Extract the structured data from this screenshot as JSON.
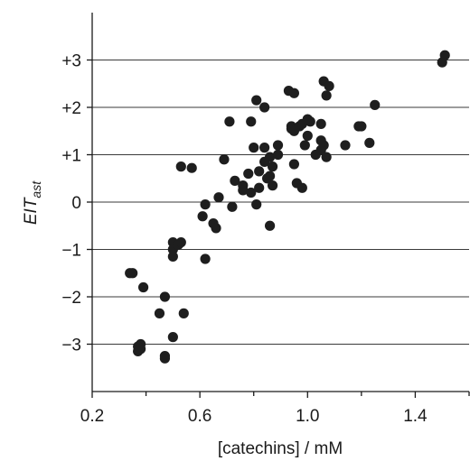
{
  "chart_data": {
    "type": "scatter",
    "title": "",
    "xlabel": "[catechins] / mM",
    "ylabel_main": "EIT",
    "ylabel_sub": "ast",
    "xlim": [
      0.2,
      1.6
    ],
    "ylim": [
      -4,
      4
    ],
    "x_ticks": [
      0.2,
      0.6,
      1.0,
      1.4
    ],
    "x_tick_labels": [
      "0.2",
      "0.6",
      "1.0",
      "1.4"
    ],
    "y_ticks": [
      3,
      2,
      1,
      0,
      -1,
      -2,
      -3
    ],
    "y_tick_labels": [
      "+3",
      "+2",
      "+1",
      "0",
      "−1",
      "−2",
      "−3"
    ],
    "grid": "horizontal",
    "point_color": "#1e1e1e",
    "points": [
      [
        0.35,
        -1.5
      ],
      [
        0.34,
        -1.5
      ],
      [
        0.39,
        -1.8
      ],
      [
        0.38,
        -3.0
      ],
      [
        0.37,
        -3.05
      ],
      [
        0.37,
        -3.15
      ],
      [
        0.38,
        -3.1
      ],
      [
        0.45,
        -2.35
      ],
      [
        0.47,
        -2.0
      ],
      [
        0.47,
        -3.25
      ],
      [
        0.47,
        -3.3
      ],
      [
        0.5,
        -2.85
      ],
      [
        0.5,
        -0.85
      ],
      [
        0.5,
        -1.0
      ],
      [
        0.5,
        -1.15
      ],
      [
        0.52,
        -0.9
      ],
      [
        0.53,
        -0.85
      ],
      [
        0.54,
        -2.35
      ],
      [
        0.53,
        0.75
      ],
      [
        0.57,
        0.72
      ],
      [
        0.61,
        -0.3
      ],
      [
        0.62,
        -0.05
      ],
      [
        0.62,
        -1.2
      ],
      [
        0.65,
        -0.45
      ],
      [
        0.66,
        -0.55
      ],
      [
        0.67,
        0.1
      ],
      [
        0.69,
        0.9
      ],
      [
        0.71,
        1.7
      ],
      [
        0.72,
        -0.1
      ],
      [
        0.73,
        0.45
      ],
      [
        0.76,
        0.35
      ],
      [
        0.76,
        0.25
      ],
      [
        0.78,
        0.6
      ],
      [
        0.79,
        1.7
      ],
      [
        0.79,
        0.2
      ],
      [
        0.8,
        1.15
      ],
      [
        0.81,
        2.15
      ],
      [
        0.81,
        -0.05
      ],
      [
        0.82,
        0.65
      ],
      [
        0.82,
        0.3
      ],
      [
        0.84,
        2.0
      ],
      [
        0.84,
        1.15
      ],
      [
        0.84,
        0.85
      ],
      [
        0.85,
        0.5
      ],
      [
        0.86,
        0.55
      ],
      [
        0.86,
        0.95
      ],
      [
        0.86,
        -0.5
      ],
      [
        0.87,
        0.75
      ],
      [
        0.87,
        0.35
      ],
      [
        0.89,
        1.2
      ],
      [
        0.89,
        1.0
      ],
      [
        0.93,
        2.35
      ],
      [
        0.95,
        2.3
      ],
      [
        0.94,
        1.6
      ],
      [
        0.94,
        1.55
      ],
      [
        0.95,
        1.5
      ],
      [
        0.95,
        0.8
      ],
      [
        0.96,
        0.4
      ],
      [
        0.97,
        1.6
      ],
      [
        0.98,
        1.65
      ],
      [
        0.99,
        1.2
      ],
      [
        0.98,
        0.3
      ],
      [
        1.0,
        1.75
      ],
      [
        1.0,
        1.4
      ],
      [
        1.01,
        1.7
      ],
      [
        1.03,
        1.0
      ],
      [
        1.05,
        1.65
      ],
      [
        1.05,
        1.3
      ],
      [
        1.06,
        1.2
      ],
      [
        1.05,
        1.1
      ],
      [
        1.06,
        2.55
      ],
      [
        1.07,
        2.25
      ],
      [
        1.08,
        2.45
      ],
      [
        1.07,
        0.95
      ],
      [
        1.14,
        1.2
      ],
      [
        1.19,
        1.6
      ],
      [
        1.2,
        1.6
      ],
      [
        1.23,
        1.25
      ],
      [
        1.25,
        2.05
      ],
      [
        1.5,
        2.95
      ],
      [
        1.51,
        3.1
      ]
    ]
  }
}
